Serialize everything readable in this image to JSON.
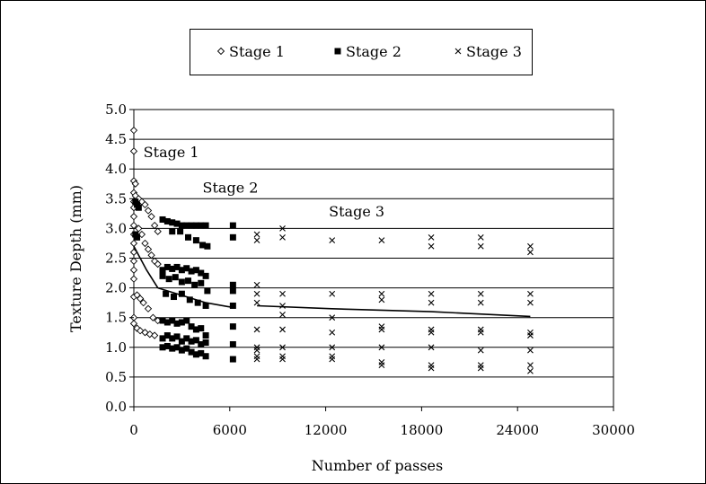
{
  "chart_data": {
    "type": "scatter",
    "title": "",
    "xlabel": "Number of passes",
    "ylabel": "Texture Depth (mm)",
    "xlim": [
      0,
      30000
    ],
    "ylim": [
      0.0,
      5.0
    ],
    "x_ticks": [
      "0",
      "6000",
      "12000",
      "18000",
      "24000",
      "30000"
    ],
    "y_ticks": [
      "0.0",
      "0.5",
      "1.0",
      "1.5",
      "2.0",
      "2.5",
      "3.0",
      "3.5",
      "4.0",
      "4.5",
      "5.0"
    ],
    "grid": "horizontal",
    "legend_position": "top",
    "legend": [
      "Stage 1",
      "Stage 2",
      "Stage 3"
    ],
    "annotations": [
      {
        "text": "Stage 1",
        "x": 600,
        "y": 4.2
      },
      {
        "text": "Stage 2",
        "x": 4300,
        "y": 3.6
      },
      {
        "text": "Stage 3",
        "x": 12200,
        "y": 3.2
      }
    ],
    "series": [
      {
        "name": "Stage 1",
        "marker": "diamond",
        "points": [
          [
            0,
            4.65
          ],
          [
            0,
            4.3
          ],
          [
            0,
            3.8
          ],
          [
            100,
            3.75
          ],
          [
            0,
            3.6
          ],
          [
            100,
            3.55
          ],
          [
            0,
            3.45
          ],
          [
            0,
            3.35
          ],
          [
            0,
            3.2
          ],
          [
            0,
            3.05
          ],
          [
            0,
            2.9
          ],
          [
            0,
            2.75
          ],
          [
            0,
            2.6
          ],
          [
            0,
            2.45
          ],
          [
            0,
            2.3
          ],
          [
            0,
            2.15
          ],
          [
            300,
            3.5
          ],
          [
            500,
            3.45
          ],
          [
            700,
            3.4
          ],
          [
            900,
            3.3
          ],
          [
            1100,
            3.2
          ],
          [
            1300,
            3.05
          ],
          [
            1500,
            2.95
          ],
          [
            300,
            3.0
          ],
          [
            500,
            2.9
          ],
          [
            700,
            2.75
          ],
          [
            900,
            2.65
          ],
          [
            1100,
            2.55
          ],
          [
            1300,
            2.45
          ],
          [
            1500,
            2.4
          ],
          [
            0,
            1.85
          ],
          [
            200,
            1.88
          ],
          [
            400,
            1.82
          ],
          [
            600,
            1.75
          ],
          [
            900,
            1.65
          ],
          [
            1200,
            1.5
          ],
          [
            1500,
            1.45
          ],
          [
            0,
            1.5
          ],
          [
            0,
            1.4
          ],
          [
            200,
            1.32
          ],
          [
            400,
            1.28
          ],
          [
            700,
            1.25
          ],
          [
            1000,
            1.22
          ],
          [
            1300,
            1.2
          ]
        ]
      },
      {
        "name": "Stage 2",
        "marker": "square",
        "points": [
          [
            100,
            3.45
          ],
          [
            200,
            3.4
          ],
          [
            300,
            3.35
          ],
          [
            100,
            2.9
          ],
          [
            200,
            2.85
          ],
          [
            1800,
            3.15
          ],
          [
            2100,
            3.12
          ],
          [
            2400,
            3.1
          ],
          [
            2700,
            3.08
          ],
          [
            3000,
            3.05
          ],
          [
            3300,
            3.05
          ],
          [
            3600,
            3.05
          ],
          [
            3900,
            3.05
          ],
          [
            4200,
            3.05
          ],
          [
            4500,
            3.05
          ],
          [
            6200,
            3.05
          ],
          [
            2400,
            2.95
          ],
          [
            2900,
            2.95
          ],
          [
            3400,
            2.85
          ],
          [
            3900,
            2.8
          ],
          [
            4300,
            2.72
          ],
          [
            4600,
            2.7
          ],
          [
            6200,
            2.85
          ],
          [
            1800,
            2.3
          ],
          [
            2100,
            2.35
          ],
          [
            2400,
            2.32
          ],
          [
            2700,
            2.35
          ],
          [
            3000,
            2.3
          ],
          [
            3300,
            2.33
          ],
          [
            3600,
            2.28
          ],
          [
            3900,
            2.3
          ],
          [
            4200,
            2.25
          ],
          [
            4500,
            2.2
          ],
          [
            1800,
            2.2
          ],
          [
            2200,
            2.15
          ],
          [
            2600,
            2.18
          ],
          [
            3000,
            2.1
          ],
          [
            3400,
            2.12
          ],
          [
            3800,
            2.05
          ],
          [
            4200,
            2.08
          ],
          [
            4600,
            1.95
          ],
          [
            6200,
            2.05
          ],
          [
            6200,
            1.95
          ],
          [
            2000,
            1.9
          ],
          [
            2500,
            1.85
          ],
          [
            3000,
            1.9
          ],
          [
            3500,
            1.8
          ],
          [
            4000,
            1.75
          ],
          [
            4500,
            1.7
          ],
          [
            6200,
            1.7
          ],
          [
            1800,
            1.45
          ],
          [
            2100,
            1.42
          ],
          [
            2400,
            1.45
          ],
          [
            2700,
            1.4
          ],
          [
            3000,
            1.42
          ],
          [
            3300,
            1.45
          ],
          [
            3600,
            1.35
          ],
          [
            3900,
            1.3
          ],
          [
            4200,
            1.32
          ],
          [
            4500,
            1.2
          ],
          [
            1800,
            1.15
          ],
          [
            2100,
            1.2
          ],
          [
            2400,
            1.15
          ],
          [
            2700,
            1.18
          ],
          [
            3000,
            1.1
          ],
          [
            3300,
            1.15
          ],
          [
            3600,
            1.1
          ],
          [
            3900,
            1.12
          ],
          [
            4200,
            1.05
          ],
          [
            4500,
            1.08
          ],
          [
            1800,
            1.0
          ],
          [
            2100,
            1.02
          ],
          [
            2400,
            0.98
          ],
          [
            2700,
            1.0
          ],
          [
            3000,
            0.95
          ],
          [
            3300,
            0.98
          ],
          [
            3600,
            0.92
          ],
          [
            3900,
            0.88
          ],
          [
            4200,
            0.9
          ],
          [
            4500,
            0.85
          ],
          [
            6200,
            1.35
          ],
          [
            6200,
            1.05
          ],
          [
            6200,
            0.8
          ]
        ]
      },
      {
        "name": "Stage 3",
        "marker": "x",
        "points": [
          [
            7700,
            2.9
          ],
          [
            7700,
            2.8
          ],
          [
            9300,
            3.0
          ],
          [
            9300,
            2.85
          ],
          [
            12400,
            2.8
          ],
          [
            15500,
            2.8
          ],
          [
            18600,
            2.85
          ],
          [
            18600,
            2.7
          ],
          [
            21700,
            2.85
          ],
          [
            21700,
            2.7
          ],
          [
            24800,
            2.7
          ],
          [
            24800,
            2.6
          ],
          [
            7700,
            2.05
          ],
          [
            7700,
            1.9
          ],
          [
            7700,
            1.75
          ],
          [
            9300,
            1.9
          ],
          [
            9300,
            1.7
          ],
          [
            12400,
            1.9
          ],
          [
            15500,
            1.9
          ],
          [
            15500,
            1.8
          ],
          [
            18600,
            1.9
          ],
          [
            18600,
            1.75
          ],
          [
            21700,
            1.9
          ],
          [
            21700,
            1.75
          ],
          [
            24800,
            1.9
          ],
          [
            24800,
            1.75
          ],
          [
            9300,
            1.55
          ],
          [
            12400,
            1.5
          ],
          [
            15500,
            1.35
          ],
          [
            15500,
            1.3
          ],
          [
            18600,
            1.3
          ],
          [
            21700,
            1.3
          ],
          [
            24800,
            1.25
          ],
          [
            7700,
            1.3
          ],
          [
            9300,
            1.3
          ],
          [
            12400,
            1.25
          ],
          [
            18600,
            1.25
          ],
          [
            21700,
            1.25
          ],
          [
            24800,
            1.2
          ],
          [
            7700,
            1.0
          ],
          [
            7700,
            0.95
          ],
          [
            9300,
            1.0
          ],
          [
            12400,
            1.0
          ],
          [
            15500,
            1.0
          ],
          [
            18600,
            1.0
          ],
          [
            21700,
            0.95
          ],
          [
            24800,
            0.95
          ],
          [
            7700,
            0.85
          ],
          [
            7700,
            0.8
          ],
          [
            9300,
            0.85
          ],
          [
            9300,
            0.8
          ],
          [
            12400,
            0.85
          ],
          [
            12400,
            0.8
          ],
          [
            15500,
            0.75
          ],
          [
            15500,
            0.7
          ],
          [
            18600,
            0.7
          ],
          [
            18600,
            0.65
          ],
          [
            21700,
            0.7
          ],
          [
            21700,
            0.65
          ],
          [
            24800,
            0.7
          ],
          [
            24800,
            0.6
          ]
        ]
      }
    ],
    "trend_lines": [
      {
        "name": "Stage 1 trend",
        "points": [
          [
            0,
            2.7
          ],
          [
            800,
            2.3
          ],
          [
            1500,
            2.0
          ]
        ]
      },
      {
        "name": "Stage 2 trend",
        "points": [
          [
            1500,
            2.0
          ],
          [
            4500,
            1.75
          ],
          [
            6200,
            1.67
          ]
        ]
      },
      {
        "name": "Stage 3 trend",
        "points": [
          [
            7700,
            1.7
          ],
          [
            12400,
            1.65
          ],
          [
            18600,
            1.6
          ],
          [
            24800,
            1.52
          ]
        ]
      }
    ]
  }
}
